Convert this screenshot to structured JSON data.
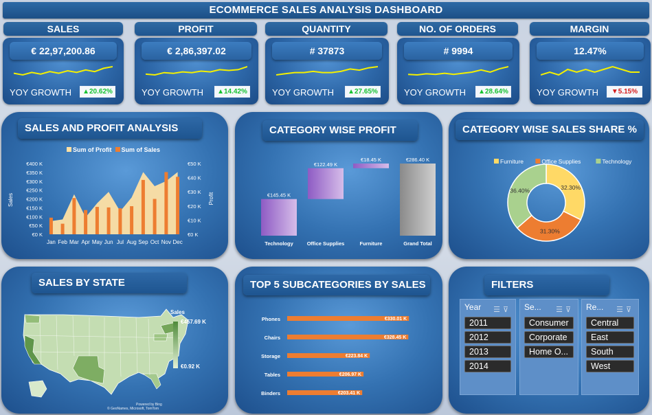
{
  "title": "ECOMMERCE SALES ANALYSIS DASHBOARD",
  "kpis": [
    {
      "label": "SALES",
      "value": "€ 22,97,200.86",
      "yoy_label": "YOY GROWTH",
      "growth": "▲20.62%",
      "positive": true,
      "trend": [
        3,
        2.6,
        3.2,
        2.8,
        3.4,
        3.0,
        3.6,
        3.2,
        3.8,
        3.4,
        4.2,
        4.6
      ]
    },
    {
      "label": "PROFIT",
      "value": "€ 2,86,397.02",
      "yoy_label": "YOY GROWTH",
      "growth": "▲14.42%",
      "positive": true,
      "trend": [
        2.4,
        2.2,
        2.8,
        2.6,
        3.0,
        2.8,
        3.2,
        3.0,
        3.6,
        3.4,
        3.6,
        4.4
      ]
    },
    {
      "label": "QUANTITY",
      "value": "# 37873",
      "yoy_label": "YOY GROWTH",
      "growth": "▲27.65%",
      "positive": true,
      "trend": [
        3,
        3.1,
        3.2,
        3.2,
        3.3,
        3.2,
        3.2,
        3.3,
        3.5,
        3.4,
        3.6,
        3.7
      ]
    },
    {
      "label": "NO. OF ORDERS",
      "value": "# 9994",
      "yoy_label": "YOY GROWTH",
      "growth": "▲28.64%",
      "positive": true,
      "trend": [
        2.8,
        2.7,
        2.9,
        2.8,
        3.0,
        2.8,
        3.0,
        3.2,
        3.6,
        3.2,
        3.8,
        4.2
      ]
    },
    {
      "label": "MARGIN",
      "value": "12.47%",
      "yoy_label": "YOY GROWTH",
      "growth": "▼5.15%",
      "positive": false,
      "trend": [
        3.2,
        3.3,
        3.2,
        3.4,
        3.3,
        3.4,
        3.3,
        3.4,
        3.5,
        3.4,
        3.3,
        3.3
      ]
    }
  ],
  "sales_profit": {
    "title": "SALES AND PROFIT ANALYSIS",
    "legend_profit": "Sum of Profit",
    "legend_sales": "Sum of Sales",
    "ylabel_left": "Sales",
    "ylabel_right": "Profit",
    "colors": {
      "profit": "#ffe0a3",
      "sales": "#ed7d31"
    }
  },
  "chart_data": [
    {
      "type": "bar",
      "title": "SALES AND PROFIT ANALYSIS",
      "categories": [
        "Jan",
        "Feb",
        "Mar",
        "Apr",
        "May",
        "Jun",
        "Jul",
        "Aug",
        "Sep",
        "Oct",
        "Nov",
        "Dec"
      ],
      "series": [
        {
          "name": "Sum of Sales",
          "axis": "left",
          "chart": "bar",
          "values": [
            94,
            60,
            205,
            137,
            155,
            152,
            147,
            159,
            307,
            200,
            352,
            325
          ]
        },
        {
          "name": "Sum of Profit",
          "axis": "right",
          "chart": "area",
          "values": [
            9.3,
            10.5,
            28.3,
            12.0,
            22.0,
            30.0,
            16.2,
            26.0,
            44.0,
            34.0,
            37.6,
            44.0
          ]
        }
      ],
      "ylim_left": [
        0,
        400
      ],
      "ylim_right": [
        0,
        50
      ],
      "left_ticks": [
        "€0 K",
        "€50 K",
        "€100 K",
        "€150 K",
        "€200 K",
        "€250 K",
        "€300 K",
        "€350 K",
        "€400 K"
      ],
      "right_ticks": [
        "€0 K",
        "€10 K",
        "€20 K",
        "€30 K",
        "€40 K",
        "€50 K"
      ],
      "ylabel": "Sales",
      "y2label": "Profit"
    },
    {
      "type": "bar",
      "subtype": "waterfall",
      "title": "CATEGORY WISE PROFIT",
      "categories": [
        "Technology",
        "Office Supplies",
        "Furniture",
        "Grand Total"
      ],
      "values": [
        145.45,
        122.49,
        18.45,
        286.4
      ],
      "labels": [
        "€145.45 K",
        "€122.49 K",
        "€18.45 K",
        "€286.40 K"
      ],
      "ylim": [
        0,
        300
      ]
    },
    {
      "type": "pie",
      "subtype": "donut",
      "title": "CATEGORY WISE SALES SHARE %",
      "categories": [
        "Furniture",
        "Office Supplies",
        "Technology"
      ],
      "values": [
        32.3,
        31.3,
        36.4
      ],
      "labels": [
        "32.30%",
        "31.30%",
        "36.40%"
      ],
      "colors": [
        "#ffd966",
        "#ed7d31",
        "#a9d18e"
      ],
      "legend": "top"
    },
    {
      "type": "bar",
      "orientation": "horizontal",
      "title": "TOP 5 SUBCATEGORIES BY SALES",
      "categories": [
        "Phones",
        "Chairs",
        "Storage",
        "Tables",
        "Binders"
      ],
      "values": [
        330.01,
        328.45,
        223.84,
        206.97,
        203.41
      ],
      "labels": [
        "€330.01 K",
        "€328.45 K",
        "€223.84 K",
        "€206.97 K",
        "€203.41 K"
      ],
      "color": "#ed7d31"
    }
  ],
  "category_profit": {
    "title": "CATEGORY WISE PROFIT"
  },
  "category_share": {
    "title": "CATEGORY WISE SALES SHARE %"
  },
  "state_map": {
    "title": "SALES BY STATE",
    "legend_title": "Sales",
    "legend_max": "€457.69 K",
    "legend_min": "€0.92 K",
    "credit_1": "Powered by Bing",
    "credit_2": "© GeoNames, Microsoft, TomTom"
  },
  "top5": {
    "title": "TOP 5 SUBCATEGORIES BY SALES"
  },
  "filters": {
    "title": "FILTERS",
    "slicers": [
      {
        "header": "Year",
        "items": [
          "2011",
          "2012",
          "2013",
          "2014"
        ]
      },
      {
        "header": "Se...",
        "items": [
          "Consumer",
          "Corporate",
          "Home O..."
        ]
      },
      {
        "header": "Re...",
        "items": [
          "Central",
          "East",
          "South",
          "West"
        ]
      }
    ],
    "icons": [
      "multi-select-icon",
      "clear-filter-icon"
    ]
  }
}
